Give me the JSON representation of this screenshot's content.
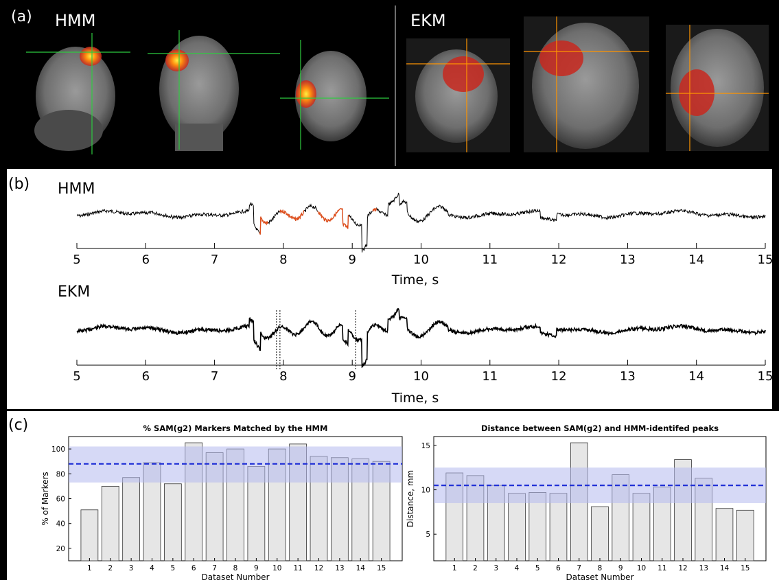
{
  "panel_a": {
    "label": "(a)",
    "left_title": "HMM",
    "right_title": "EKM"
  },
  "panel_b": {
    "label": "(b)",
    "traces": [
      {
        "title": "HMM",
        "xlabel": "Time, s",
        "xlim": [
          5,
          15
        ],
        "ticks": [
          "5",
          "6",
          "7",
          "8",
          "9",
          "10",
          "11",
          "12",
          "13",
          "14",
          "15"
        ],
        "highlight_color": "#e0501e"
      },
      {
        "title": "EKM",
        "xlabel": "Time, s",
        "xlim": [
          5,
          15
        ],
        "ticks": [
          "5",
          "6",
          "7",
          "8",
          "9",
          "10",
          "11",
          "12",
          "13",
          "14",
          "15"
        ],
        "marker_times": [
          7.9,
          7.95,
          9.05
        ]
      }
    ]
  },
  "panel_c": {
    "label": "(c)"
  },
  "chart_data": [
    {
      "type": "bar",
      "title": "% SAM(g2) Markers Matched by the HMM",
      "xlabel": "Dataset Number",
      "ylabel": "% of Markers",
      "categories": [
        "1",
        "2",
        "3",
        "4",
        "5",
        "6",
        "7",
        "8",
        "9",
        "10",
        "11",
        "12",
        "13",
        "14",
        "15"
      ],
      "values": [
        51,
        70,
        77,
        89,
        72,
        105,
        97,
        100,
        86,
        100,
        104,
        94,
        93,
        92,
        90
      ],
      "ylim": [
        10,
        110
      ],
      "yticks": [
        20,
        40,
        60,
        80,
        100
      ],
      "mean": 88,
      "band": [
        73,
        102
      ],
      "bar_color": "#e6e6e6",
      "mean_color": "#1f2fd6",
      "band_color": "#b4b9ee"
    },
    {
      "type": "bar",
      "title": "Distance between SAM(g2) and HMM-identifed peaks",
      "xlabel": "Dataset Number",
      "ylabel": "Distance, mm",
      "categories": [
        "1",
        "2",
        "3",
        "4",
        "5",
        "6",
        "7",
        "8",
        "9",
        "10",
        "11",
        "12",
        "13",
        "14",
        "15"
      ],
      "values": [
        11.9,
        11.6,
        10.5,
        9.6,
        9.7,
        9.6,
        15.3,
        8.1,
        11.7,
        9.6,
        10.3,
        13.4,
        11.3,
        7.9,
        7.7
      ],
      "ylim": [
        2,
        16
      ],
      "yticks": [
        5,
        10,
        15
      ],
      "mean": 10.5,
      "band": [
        8.5,
        12.5
      ],
      "bar_color": "#e6e6e6",
      "mean_color": "#1f2fd6",
      "band_color": "#b4b9ee"
    }
  ]
}
